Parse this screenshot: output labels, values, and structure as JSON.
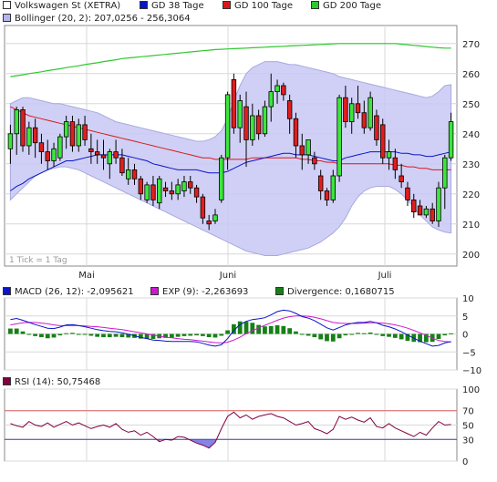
{
  "legend_main": [
    {
      "label": "Volkswagen St (XETRA)",
      "color": "#ffffff"
    },
    {
      "label": "GD 38 Tage",
      "color": "#0a14c8"
    },
    {
      "label": "GD 100 Tage",
      "color": "#d81818"
    },
    {
      "label": "GD 200 Tage",
      "color": "#2fc82f"
    },
    {
      "label": "Bollinger (20, 2): 207,0256 - 256,3064",
      "color": "#b4b4f0"
    }
  ],
  "legend_macd": [
    {
      "label": "MACD (26, 12): -2,095621",
      "color": "#0a14c8"
    },
    {
      "label": "EXP (9): -2,263693",
      "color": "#d018d0"
    },
    {
      "label": "Divergence: 0,1680715",
      "color": "#168016"
    }
  ],
  "legend_rsi": [
    {
      "label": "RSI (14): 50,75468",
      "color": "#800040"
    }
  ],
  "tick_note": "1 Tick = 1 Tag",
  "chart_data": [
    {
      "type": "candlestick",
      "title": "Volkswagen St (XETRA)",
      "y_ticks": [
        200,
        210,
        220,
        230,
        240,
        250,
        260,
        270
      ],
      "ylim": [
        196,
        276
      ],
      "x_labels": [
        "Mai",
        "Juni",
        "Juli"
      ],
      "candles": [
        {
          "o": 235,
          "h": 243,
          "l": 230,
          "c": 240
        },
        {
          "o": 240,
          "h": 249,
          "l": 233,
          "c": 248
        },
        {
          "o": 248,
          "h": 249,
          "l": 234,
          "c": 236
        },
        {
          "o": 236,
          "h": 244,
          "l": 233,
          "c": 242
        },
        {
          "o": 242,
          "h": 245,
          "l": 232,
          "c": 237
        },
        {
          "o": 237,
          "h": 240,
          "l": 230,
          "c": 234
        },
        {
          "o": 234,
          "h": 238,
          "l": 228,
          "c": 231
        },
        {
          "o": 231,
          "h": 237,
          "l": 229,
          "c": 235
        },
        {
          "o": 232,
          "h": 240,
          "l": 231,
          "c": 239
        },
        {
          "o": 239,
          "h": 246,
          "l": 235,
          "c": 244
        },
        {
          "o": 244,
          "h": 246,
          "l": 234,
          "c": 236
        },
        {
          "o": 236,
          "h": 245,
          "l": 234,
          "c": 243
        },
        {
          "o": 243,
          "h": 246,
          "l": 236,
          "c": 238
        },
        {
          "o": 235,
          "h": 240,
          "l": 230,
          "c": 234
        },
        {
          "o": 234,
          "h": 238,
          "l": 230,
          "c": 233
        },
        {
          "o": 233,
          "h": 238,
          "l": 228,
          "c": 232
        },
        {
          "o": 230,
          "h": 235,
          "l": 225,
          "c": 234
        },
        {
          "o": 234,
          "h": 238,
          "l": 230,
          "c": 232
        },
        {
          "o": 232,
          "h": 235,
          "l": 226,
          "c": 227
        },
        {
          "o": 225,
          "h": 232,
          "l": 223,
          "c": 228
        },
        {
          "o": 228,
          "h": 230,
          "l": 223,
          "c": 225
        },
        {
          "o": 225,
          "h": 226,
          "l": 218,
          "c": 220
        },
        {
          "o": 218,
          "h": 224,
          "l": 217,
          "c": 223
        },
        {
          "o": 223,
          "h": 226,
          "l": 216,
          "c": 218
        },
        {
          "o": 217,
          "h": 226,
          "l": 215,
          "c": 225
        },
        {
          "o": 222,
          "h": 224,
          "l": 219,
          "c": 221
        },
        {
          "o": 221,
          "h": 224,
          "l": 218,
          "c": 220
        },
        {
          "o": 220,
          "h": 225,
          "l": 218,
          "c": 223
        },
        {
          "o": 221,
          "h": 226,
          "l": 219,
          "c": 224
        },
        {
          "o": 224,
          "h": 226,
          "l": 220,
          "c": 222
        },
        {
          "o": 222,
          "h": 223,
          "l": 217,
          "c": 219
        },
        {
          "o": 219,
          "h": 220,
          "l": 210,
          "c": 212
        },
        {
          "o": 211,
          "h": 213,
          "l": 208,
          "c": 210
        },
        {
          "o": 211,
          "h": 215,
          "l": 210,
          "c": 213
        },
        {
          "o": 218,
          "h": 233,
          "l": 217,
          "c": 232
        },
        {
          "o": 232,
          "h": 254,
          "l": 228,
          "c": 253
        },
        {
          "o": 258,
          "h": 260,
          "l": 240,
          "c": 242
        },
        {
          "o": 242,
          "h": 253,
          "l": 237,
          "c": 251
        },
        {
          "o": 249,
          "h": 254,
          "l": 229,
          "c": 238
        },
        {
          "o": 238,
          "h": 250,
          "l": 236,
          "c": 246
        },
        {
          "o": 246,
          "h": 248,
          "l": 238,
          "c": 240
        },
        {
          "o": 240,
          "h": 251,
          "l": 239,
          "c": 249
        },
        {
          "o": 249,
          "h": 260,
          "l": 244,
          "c": 254
        },
        {
          "o": 254,
          "h": 258,
          "l": 250,
          "c": 256
        },
        {
          "o": 256,
          "h": 257,
          "l": 251,
          "c": 253
        },
        {
          "o": 251,
          "h": 253,
          "l": 240,
          "c": 245
        },
        {
          "o": 245,
          "h": 247,
          "l": 232,
          "c": 236
        },
        {
          "o": 236,
          "h": 240,
          "l": 228,
          "c": 233
        },
        {
          "o": 233,
          "h": 238,
          "l": 230,
          "c": 238
        },
        {
          "o": 232,
          "h": 234,
          "l": 228,
          "c": 230
        },
        {
          "o": 226,
          "h": 228,
          "l": 218,
          "c": 221
        },
        {
          "o": 221,
          "h": 222,
          "l": 216,
          "c": 218
        },
        {
          "o": 218,
          "h": 228,
          "l": 217,
          "c": 226
        },
        {
          "o": 226,
          "h": 253,
          "l": 224,
          "c": 252
        },
        {
          "o": 252,
          "h": 256,
          "l": 242,
          "c": 244
        },
        {
          "o": 244,
          "h": 252,
          "l": 240,
          "c": 250
        },
        {
          "o": 250,
          "h": 256,
          "l": 245,
          "c": 247
        },
        {
          "o": 247,
          "h": 251,
          "l": 240,
          "c": 242
        },
        {
          "o": 242,
          "h": 254,
          "l": 241,
          "c": 252
        },
        {
          "o": 246,
          "h": 248,
          "l": 236,
          "c": 238
        },
        {
          "o": 243,
          "h": 245,
          "l": 230,
          "c": 232
        },
        {
          "o": 232,
          "h": 238,
          "l": 228,
          "c": 234
        },
        {
          "o": 232,
          "h": 235,
          "l": 225,
          "c": 228
        },
        {
          "o": 226,
          "h": 230,
          "l": 222,
          "c": 224
        },
        {
          "o": 222,
          "h": 224,
          "l": 216,
          "c": 218
        },
        {
          "o": 218,
          "h": 220,
          "l": 212,
          "c": 214
        },
        {
          "o": 216,
          "h": 218,
          "l": 213,
          "c": 213
        },
        {
          "o": 213,
          "h": 216,
          "l": 212,
          "c": 215
        },
        {
          "o": 215,
          "h": 217,
          "l": 210,
          "c": 211
        },
        {
          "o": 211,
          "h": 224,
          "l": 209,
          "c": 222
        },
        {
          "o": 222,
          "h": 233,
          "l": 215,
          "c": 232
        },
        {
          "o": 232,
          "h": 247,
          "l": 231,
          "c": 244
        }
      ],
      "gd38": [
        221,
        222.5,
        223.5,
        225,
        226,
        227,
        228,
        229,
        230,
        231,
        231,
        231.5,
        232,
        232.5,
        233,
        233,
        233,
        233,
        233,
        232.5,
        232,
        231.5,
        231,
        230,
        229.5,
        229,
        228.5,
        228,
        228,
        228,
        228,
        227.5,
        227,
        227,
        227,
        227.5,
        228.5,
        229.5,
        230.5,
        231,
        231.5,
        232,
        232.5,
        233,
        233.5,
        233.5,
        233,
        233,
        233,
        232.5,
        232,
        231.5,
        231,
        231,
        232,
        232.5,
        233,
        233.5,
        234,
        234,
        234,
        234,
        234,
        233.5,
        233.5,
        233,
        233,
        232.5,
        232.5,
        233,
        233.5,
        234
      ],
      "gd100": [
        249,
        248,
        247,
        246,
        245.5,
        245,
        244.5,
        244,
        243.5,
        243,
        242.5,
        242,
        241.5,
        241,
        240.5,
        240,
        239.5,
        239,
        238.5,
        238,
        237.5,
        237,
        236.5,
        236,
        235.5,
        235,
        234.5,
        234,
        233.5,
        233,
        232.5,
        232,
        232,
        231.5,
        231.5,
        231.5,
        231.5,
        231.5,
        231.5,
        232,
        232,
        232,
        232,
        232,
        232,
        232,
        232,
        231.5,
        231.5,
        231,
        231,
        230.5,
        230.5,
        230,
        230,
        230,
        230,
        230,
        230,
        230,
        230,
        230,
        229.5,
        229.5,
        229,
        229,
        228.5,
        228.5,
        228,
        228,
        228,
        228
      ],
      "gd200": [
        259,
        259.3,
        259.6,
        260,
        260.3,
        260.6,
        261,
        261.3,
        261.6,
        262,
        262.3,
        262.6,
        263,
        263.3,
        263.6,
        264,
        264.3,
        264.6,
        265,
        265.2,
        265.4,
        265.6,
        265.8,
        266,
        266.2,
        266.4,
        266.6,
        266.8,
        267,
        267.2,
        267.4,
        267.6,
        267.8,
        268,
        268.1,
        268.2,
        268.3,
        268.4,
        268.5,
        268.6,
        268.7,
        268.8,
        268.9,
        269,
        269.1,
        269.2,
        269.3,
        269.4,
        269.5,
        269.6,
        269.7,
        269.8,
        269.9,
        270,
        270,
        270,
        270,
        270,
        270,
        270,
        270,
        270,
        270,
        269.8,
        269.6,
        269.4,
        269.2,
        269,
        268.8,
        268.6,
        268.5,
        268.5
      ],
      "boll_upper": [
        250,
        251,
        252,
        252,
        251.5,
        251,
        250.5,
        250,
        250,
        249.5,
        249,
        248.5,
        248,
        247.5,
        247,
        246,
        245,
        244,
        243.5,
        243,
        242.5,
        242,
        241.5,
        241,
        240.5,
        240,
        239.5,
        239,
        238.5,
        238,
        237.5,
        237.5,
        238,
        239,
        241,
        245,
        251,
        256,
        260,
        262,
        263,
        264,
        264,
        264,
        263.5,
        263,
        263,
        262.5,
        262,
        261.5,
        261,
        260.5,
        260,
        259,
        258.5,
        258,
        257.5,
        257,
        256.5,
        256,
        255.5,
        255,
        254.5,
        254,
        253.5,
        253,
        252.5,
        252,
        252.5,
        254,
        256,
        256.3
      ],
      "boll_lower": [
        218,
        220,
        222,
        224,
        226,
        227,
        228,
        228.5,
        229,
        229,
        228.5,
        228,
        227,
        226,
        225,
        224,
        223,
        222,
        221,
        220,
        219,
        218,
        217,
        216,
        215,
        214,
        213,
        212,
        211,
        210,
        209,
        208,
        207,
        206,
        205,
        204,
        203,
        202,
        201,
        200.5,
        200,
        199.5,
        199.5,
        199.5,
        200,
        200.5,
        201,
        201.5,
        202,
        203,
        204,
        205.5,
        207,
        209,
        212,
        216,
        219,
        221,
        222,
        222.5,
        222.5,
        222.5,
        221.5,
        220,
        218,
        215.5,
        213,
        211,
        209,
        208,
        207.3,
        207
      ]
    },
    {
      "type": "bar+line",
      "title": "MACD (26, 12)",
      "y_ticks": [
        10,
        5,
        0,
        -5,
        -10
      ],
      "ylim": [
        -10,
        10
      ],
      "macd": [
        4,
        4.3,
        3.8,
        3.2,
        2.6,
        2.1,
        1.6,
        1.5,
        1.9,
        2.5,
        2.6,
        2.3,
        2,
        1.6,
        1.2,
        0.9,
        0.7,
        0.6,
        0.3,
        -0.1,
        -0.5,
        -1,
        -1.3,
        -1.7,
        -1.8,
        -2,
        -2.1,
        -2.1,
        -2.1,
        -2.1,
        -2.2,
        -2.6,
        -3.1,
        -3.4,
        -3,
        -1.3,
        1,
        2.6,
        3.5,
        4,
        4.2,
        4.5,
        5.3,
        6.2,
        6.6,
        6.4,
        5.7,
        4.8,
        4.4,
        3.7,
        2.7,
        1.7,
        1.1,
        1.8,
        2.5,
        2.9,
        3.2,
        3.2,
        3.5,
        3.1,
        2.4,
        2,
        1.4,
        0.6,
        -0.3,
        -1.2,
        -2,
        -2.7,
        -3.4,
        -3.2,
        -2.5,
        -2.1
      ],
      "signal": [
        2.5,
        2.8,
        3.1,
        3.2,
        3.2,
        3,
        2.8,
        2.5,
        2.3,
        2.3,
        2.3,
        2.3,
        2.2,
        2.1,
        2,
        1.8,
        1.6,
        1.4,
        1.2,
        0.9,
        0.6,
        0.3,
        0,
        -0.3,
        -0.6,
        -0.9,
        -1.1,
        -1.3,
        -1.5,
        -1.6,
        -1.8,
        -2,
        -2.2,
        -2.4,
        -2.5,
        -2.3,
        -1.7,
        -0.9,
        0.1,
        0.9,
        1.7,
        2.4,
        3.1,
        3.8,
        4.4,
        4.8,
        5,
        5,
        4.9,
        4.6,
        4.2,
        3.7,
        3.2,
        3,
        2.9,
        2.9,
        2.9,
        3,
        3.1,
        3.1,
        3,
        2.8,
        2.5,
        2.1,
        1.6,
        1,
        0.3,
        -0.4,
        -1.2,
        -1.8,
        -2.1,
        -2.26
      ],
      "divergence": [
        1.5,
        1.5,
        0.7,
        0,
        -0.6,
        -0.9,
        -1.2,
        -1,
        -0.4,
        0.2,
        0.3,
        0,
        -0.2,
        -0.5,
        -0.8,
        -0.9,
        -0.9,
        -0.8,
        -0.9,
        -1,
        -1.1,
        -1.3,
        -1.3,
        -1.4,
        -1.2,
        -1.1,
        -1,
        -0.8,
        -0.6,
        -0.5,
        -0.4,
        -0.6,
        -0.9,
        -1,
        -0.5,
        1,
        2.7,
        3.5,
        3.4,
        3.1,
        2.5,
        2.1,
        2.2,
        2.4,
        2.2,
        1.6,
        0.7,
        -0.2,
        -0.5,
        -0.9,
        -1.5,
        -2,
        -2.1,
        -1.2,
        -0.4,
        0,
        0.3,
        0.2,
        0.4,
        0,
        -0.6,
        -0.8,
        -1.1,
        -1.5,
        -1.9,
        -2.2,
        -2.3,
        -2.3,
        -2.2,
        -1.4,
        -0.4,
        0.17
      ]
    },
    {
      "type": "line",
      "title": "RSI (14)",
      "y_ticks": [
        100,
        70,
        50,
        30,
        0
      ],
      "ylim": [
        0,
        100
      ],
      "ref_lines": [
        70,
        30
      ],
      "rsi": [
        52,
        49,
        47,
        55,
        50,
        48,
        53,
        47,
        51,
        55,
        50,
        53,
        49,
        45,
        48,
        50,
        47,
        52,
        44,
        40,
        42,
        36,
        40,
        34,
        27,
        30,
        29,
        34,
        33,
        29,
        25,
        22,
        18,
        26,
        45,
        62,
        68,
        60,
        64,
        58,
        62,
        64,
        66,
        62,
        60,
        55,
        50,
        52,
        55,
        45,
        42,
        38,
        44,
        62,
        58,
        61,
        57,
        54,
        60,
        48,
        46,
        52,
        46,
        42,
        38,
        34,
        40,
        36,
        46,
        55,
        50,
        50.75
      ]
    }
  ]
}
